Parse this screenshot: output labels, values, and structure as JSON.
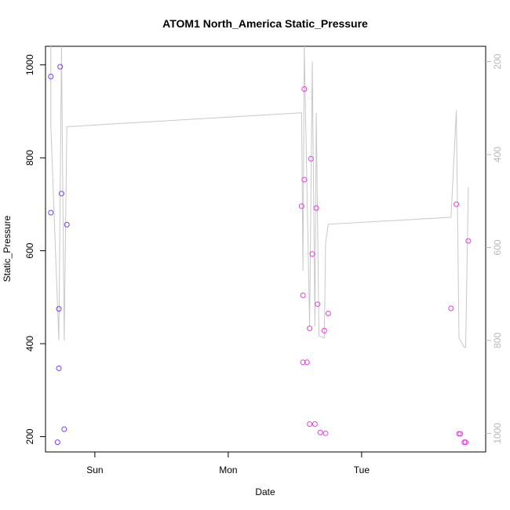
{
  "chart_data": {
    "type": "scatter",
    "title": "ATOM1 North_America Static_Pressure",
    "xlabel": "Date",
    "ylabel": "Static_Pressure",
    "x_ticks": [
      "Sun",
      "Mon",
      "Tue"
    ],
    "x_tick_positions": [
      1.0,
      2.0,
      3.0
    ],
    "xlim": [
      0.63,
      3.93
    ],
    "ylim": [
      167,
      1040
    ],
    "y_ticks": [
      200,
      400,
      600,
      800,
      1000
    ],
    "y2_ticks": [
      200,
      400,
      600,
      800,
      1000
    ],
    "y2lim": [
      1040,
      167
    ],
    "y2_reversed": true,
    "grid": false,
    "colors": {
      "points_early": "#7b3cff",
      "points_late": "#e040e0",
      "line": "#c8c8c8",
      "right_axis": "#b8b8b8"
    },
    "points": [
      {
        "x": 0.67,
        "y": 975
      },
      {
        "x": 0.67,
        "y": 682
      },
      {
        "x": 0.73,
        "y": 347
      },
      {
        "x": 0.73,
        "y": 475
      },
      {
        "x": 0.72,
        "y": 188
      },
      {
        "x": 0.74,
        "y": 996
      },
      {
        "x": 0.75,
        "y": 723
      },
      {
        "x": 0.77,
        "y": 216
      },
      {
        "x": 0.79,
        "y": 656
      },
      {
        "x": 2.55,
        "y": 696
      },
      {
        "x": 2.56,
        "y": 504
      },
      {
        "x": 2.56,
        "y": 360
      },
      {
        "x": 2.57,
        "y": 948
      },
      {
        "x": 2.57,
        "y": 753
      },
      {
        "x": 2.59,
        "y": 360
      },
      {
        "x": 2.61,
        "y": 433
      },
      {
        "x": 2.61,
        "y": 227
      },
      {
        "x": 2.62,
        "y": 798
      },
      {
        "x": 2.63,
        "y": 593
      },
      {
        "x": 2.65,
        "y": 227
      },
      {
        "x": 2.66,
        "y": 692
      },
      {
        "x": 2.67,
        "y": 485
      },
      {
        "x": 2.69,
        "y": 209
      },
      {
        "x": 2.72,
        "y": 428
      },
      {
        "x": 2.73,
        "y": 207
      },
      {
        "x": 2.75,
        "y": 465
      },
      {
        "x": 3.67,
        "y": 476
      },
      {
        "x": 3.71,
        "y": 700
      },
      {
        "x": 3.73,
        "y": 206
      },
      {
        "x": 3.74,
        "y": 206
      },
      {
        "x": 3.77,
        "y": 188
      },
      {
        "x": 3.78,
        "y": 188
      },
      {
        "x": 3.8,
        "y": 621
      }
    ],
    "line_y2": [
      {
        "x": 0.67,
        "y": 150
      },
      {
        "x": 0.67,
        "y": 340
      },
      {
        "x": 0.73,
        "y": 800
      },
      {
        "x": 0.75,
        "y": 150
      },
      {
        "x": 0.77,
        "y": 800
      },
      {
        "x": 0.79,
        "y": 340
      },
      {
        "x": 2.55,
        "y": 310
      },
      {
        "x": 2.56,
        "y": 650
      },
      {
        "x": 2.57,
        "y": 150
      },
      {
        "x": 2.61,
        "y": 770
      },
      {
        "x": 2.63,
        "y": 200
      },
      {
        "x": 2.65,
        "y": 770
      },
      {
        "x": 2.66,
        "y": 310
      },
      {
        "x": 2.68,
        "y": 790
      },
      {
        "x": 2.72,
        "y": 795
      },
      {
        "x": 2.73,
        "y": 590
      },
      {
        "x": 2.75,
        "y": 550
      },
      {
        "x": 3.67,
        "y": 535
      },
      {
        "x": 3.71,
        "y": 305
      },
      {
        "x": 3.73,
        "y": 795
      },
      {
        "x": 3.77,
        "y": 815
      },
      {
        "x": 3.78,
        "y": 815
      },
      {
        "x": 3.8,
        "y": 470
      }
    ]
  }
}
